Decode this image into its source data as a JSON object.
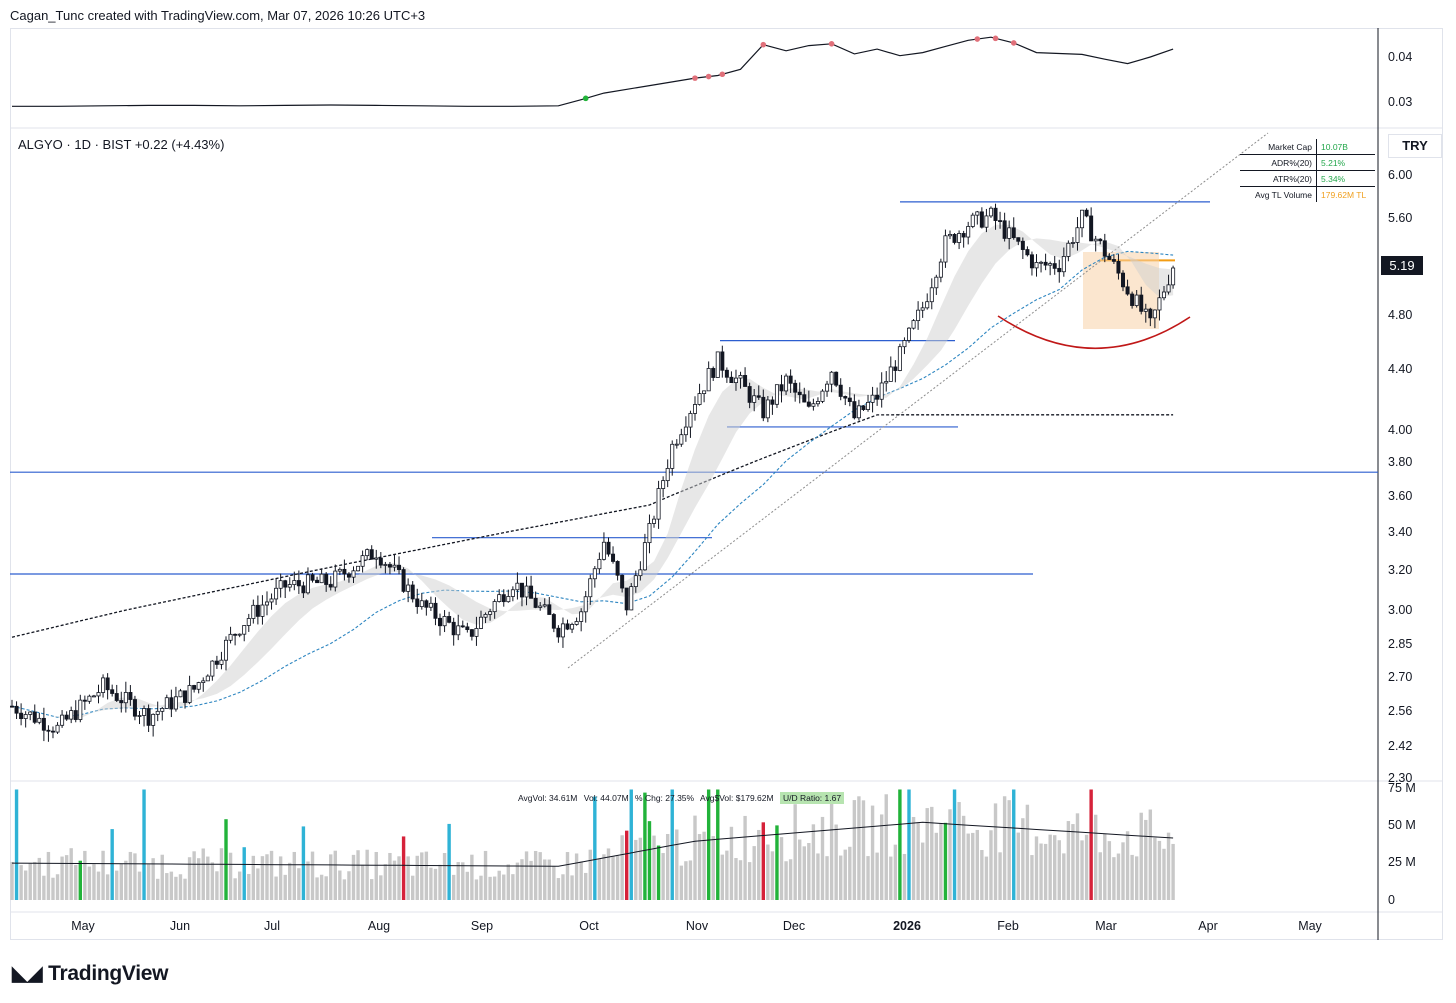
{
  "header": {
    "credit": "Cagan_Tunc created with TradingView.com, Mar 07, 2026 10:26 UTC+3"
  },
  "symbol": {
    "name": "ALGYO · 1D · BIST",
    "change": "+0.22 (+4.43%)",
    "currency": "TRY",
    "last_price": "5.19"
  },
  "stats": [
    {
      "label": "Market Cap",
      "value": "10.07B",
      "color": "#22a64a"
    },
    {
      "label": "ADR%(20)",
      "value": "5.21%",
      "color": "#22a64a"
    },
    {
      "label": "ATR%(20)",
      "value": "5.34%",
      "color": "#22a64a"
    },
    {
      "label": "Avg TL Volume",
      "value": "179.62M TL",
      "color": "#f0a020"
    }
  ],
  "volume_info": {
    "avgvol": "AvgVol: 34.61M",
    "vol": "Vol: 44.07M",
    "chg": "% Chg: 27.35%",
    "avgdollar": "Avg$Vol: $179.62M",
    "ud": "U/D Ratio: 1.67"
  },
  "branding": {
    "logo_text": "TradingView"
  },
  "chart_data": [
    {
      "type": "line",
      "panel": "indicator",
      "y_ticks": [
        "0.04",
        "0.03"
      ],
      "ylim": [
        0.026,
        0.046
      ],
      "x": [
        0,
        10,
        20,
        30,
        40,
        50,
        60,
        70,
        80,
        90,
        100,
        110,
        120,
        125,
        130,
        140,
        150,
        155,
        160,
        165,
        170,
        175,
        180,
        185,
        190,
        195,
        200,
        205,
        210,
        215,
        220,
        225,
        230,
        235,
        240,
        245,
        250,
        255
      ],
      "values": [
        0.0288,
        0.0288,
        0.0289,
        0.029,
        0.029,
        0.0289,
        0.029,
        0.0291,
        0.029,
        0.0289,
        0.0288,
        0.0288,
        0.0289,
        0.0303,
        0.0318,
        0.0335,
        0.0352,
        0.0358,
        0.0372,
        0.0428,
        0.0414,
        0.0426,
        0.043,
        0.0407,
        0.0418,
        0.0403,
        0.041,
        0.0424,
        0.0438,
        0.0445,
        0.0432,
        0.041,
        0.0408,
        0.0406,
        0.0395,
        0.0385,
        0.04,
        0.0418
      ]
    },
    {
      "type": "candlestick",
      "panel": "price",
      "y_ticks": [
        "6.00",
        "5.60",
        "5.19",
        "4.80",
        "4.40",
        "4.00",
        "3.80",
        "3.60",
        "3.40",
        "3.20",
        "3.00",
        "2.85",
        "2.70",
        "2.56",
        "2.42",
        "2.30"
      ],
      "ylim": [
        2.3,
        6.2
      ],
      "x_ticks": [
        "May",
        "Jun",
        "Jul",
        "Aug",
        "Sep",
        "Oct",
        "Nov",
        "Dec",
        "2026",
        "Feb",
        "Mar",
        "Apr",
        "May"
      ],
      "close_x": [
        0,
        10,
        20,
        30,
        40,
        50,
        60,
        70,
        80,
        90,
        100,
        110,
        120,
        125,
        130,
        135,
        140,
        145,
        150,
        155,
        160,
        165,
        170,
        175,
        180,
        185,
        190,
        195,
        200,
        205,
        210,
        215,
        220,
        225,
        230,
        235,
        240,
        245,
        250,
        255
      ],
      "close": [
        2.58,
        2.49,
        2.66,
        2.54,
        2.65,
        2.93,
        3.12,
        3.14,
        3.3,
        3.02,
        2.88,
        3.14,
        2.92,
        3.0,
        3.35,
        3.02,
        3.4,
        3.9,
        4.2,
        4.46,
        4.3,
        4.12,
        4.32,
        4.12,
        4.4,
        4.08,
        4.22,
        4.5,
        4.86,
        5.38,
        5.55,
        5.62,
        5.4,
        5.18,
        5.2,
        5.6,
        5.3,
        5.0,
        4.72,
        5.19
      ],
      "volume_unit": "M",
      "volume_ticks": [
        "75 M",
        "50 M",
        "25 M",
        "0"
      ],
      "horizontal_levels": [
        5.75,
        5.23,
        4.61,
        4.02,
        3.74,
        3.37,
        3.18
      ]
    }
  ]
}
